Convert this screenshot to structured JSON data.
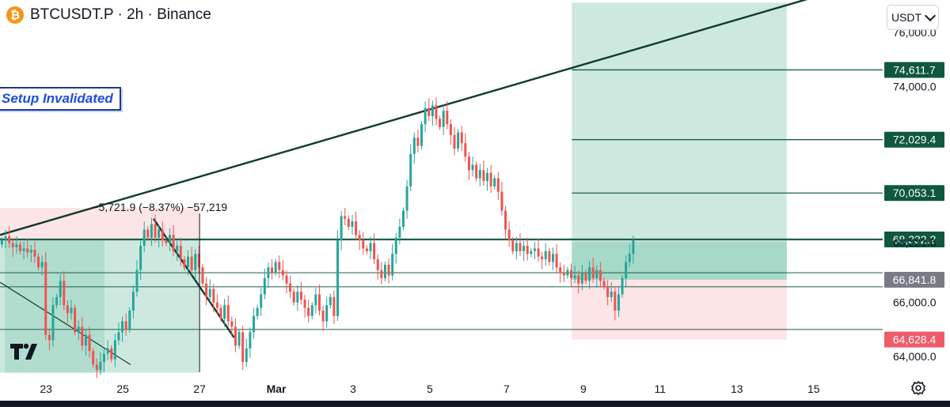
{
  "header": {
    "coin_icon": "bitcoin-icon",
    "coin_glyph": "₿",
    "title": "BTCUSDT.P · 2h · Binance"
  },
  "annotation": {
    "setup_label": "Setup Invalidated",
    "measure_label": "−5,721.9 (−8.37%) −57,219"
  },
  "controls": {
    "currency": "USDT",
    "currency_icon": "chevron-down-icon",
    "settings_icon": "gear-icon"
  },
  "logo": {
    "name": "tradingview-logo-icon",
    "text": "TV"
  },
  "colors": {
    "up": "#26a69a",
    "down": "#ef5350",
    "trendline": "#0f3b2e",
    "level": "#1b5e4a",
    "tp_zone": "#cde9df",
    "sl_zone": "#fde4e6",
    "entry_zone": "#9fd6c4",
    "neutral_badge": "#787b86",
    "sl_badge": "#f05b6a",
    "tp_badge": "#0f5740"
  },
  "chart_data": {
    "type": "candlestick",
    "symbol": "BTCUSDT.P",
    "interval": "2h",
    "exchange": "Binance",
    "y_ticks": [
      64000,
      66000,
      68221.6,
      74000,
      76000
    ],
    "y_tick_labels": [
      "64,000.0",
      "66,000.0",
      "68,221.6",
      "74,000.0",
      "76,000.0"
    ],
    "ylim": [
      63300,
      77200
    ],
    "x_tick_labels": [
      "23",
      "25",
      "27",
      "Mar",
      "3",
      "5",
      "7",
      "9",
      "11",
      "13",
      "15"
    ],
    "x_tick_days": [
      -6,
      -4,
      -2,
      0,
      2,
      4,
      6,
      8,
      10,
      12,
      14
    ],
    "x_ticks_at": [
      "Feb 23",
      "Feb 25",
      "Feb 27",
      "Mar 1",
      "Mar 3",
      "Mar 5",
      "Mar 7",
      "Mar 9",
      "Mar 11",
      "Mar 13",
      "Mar 15"
    ],
    "xlim": [
      -7.2,
      15.8
    ],
    "price_levels": [
      {
        "value": 74611.7,
        "label": "74,611.7",
        "style": "tp"
      },
      {
        "value": 72029.4,
        "label": "72,029.4",
        "style": "tp"
      },
      {
        "value": 70053.1,
        "label": "70,053.1",
        "style": "tp"
      },
      {
        "value": 68332.2,
        "label": "68,332.2",
        "style": "tp"
      },
      {
        "value": 66841.8,
        "label": "66,841.8",
        "style": "neutral"
      },
      {
        "value": 64628.4,
        "label": "64,628.4",
        "style": "sl"
      }
    ],
    "horizontal_lines": [
      68332.2,
      67100,
      66580,
      65000
    ],
    "position_short": {
      "x_from": -7.2,
      "x_to": -2.0,
      "entry": 68332.2,
      "stop": 69500,
      "target": 63400
    },
    "position_long": {
      "x_from": 7.7,
      "x_to": 13.3,
      "entry": 66841.8,
      "stop": 64628.4,
      "target": 77100,
      "entry_zone_top": 68250
    },
    "trendlines": [
      {
        "from": [
          -7.2,
          68500
        ],
        "to": [
          14.0,
          77300
        ]
      },
      {
        "from": [
          -3.2,
          69100
        ],
        "to": [
          -1.1,
          64700
        ]
      },
      {
        "from": [
          -7.2,
          66750
        ],
        "to": [
          -3.8,
          63700
        ]
      }
    ],
    "candles_close": [
      68300,
      68450,
      68200,
      68050,
      68150,
      67900,
      68000,
      67850,
      67950,
      67700,
      67300,
      67500,
      64800,
      64600,
      65900,
      66200,
      66800,
      65900,
      65600,
      65800,
      64900,
      65100,
      64400,
      64800,
      64200,
      63700,
      63500,
      63800,
      64100,
      64300,
      63900,
      64600,
      64900,
      65300,
      65000,
      65700,
      66400,
      67200,
      68100,
      68700,
      68400,
      68900,
      68400,
      68700,
      68300,
      68200,
      68500,
      67900,
      68100,
      67600,
      67300,
      67700,
      67200,
      67800,
      67300,
      66700,
      66200,
      66500,
      66000,
      65800,
      65400,
      65900,
      65300,
      65100,
      64400,
      64900,
      63800,
      64300,
      64900,
      65500,
      65800,
      66300,
      66900,
      67300,
      67100,
      67500,
      67200,
      67000,
      66700,
      66400,
      66000,
      66400,
      66100,
      65800,
      65500,
      65900,
      66300,
      65700,
      65300,
      65900,
      66200,
      65500,
      68300,
      69200,
      69100,
      68800,
      69000,
      68500,
      68300,
      68000,
      67900,
      68200,
      67600,
      67200,
      66900,
      67400,
      67000,
      67800,
      68400,
      68800,
      69400,
      70300,
      71500,
      72100,
      71800,
      72600,
      73200,
      72900,
      73300,
      72800,
      72500,
      73100,
      72600,
      72200,
      71700,
      72300,
      71900,
      71400,
      70900,
      71100,
      70600,
      70900,
      70500,
      70800,
      70300,
      70600,
      70100,
      69400,
      68700,
      68300,
      67900,
      68200,
      67900,
      68100,
      67800,
      67900,
      68000,
      67700,
      67600,
      67900,
      67500,
      67800,
      67300,
      67100,
      67000,
      67200,
      66900,
      67000,
      66700,
      67100,
      66800,
      67300,
      66900,
      67200,
      66800,
      66600,
      66200,
      66400,
      65700,
      66300,
      66900,
      67500,
      67800,
      68300
    ]
  }
}
